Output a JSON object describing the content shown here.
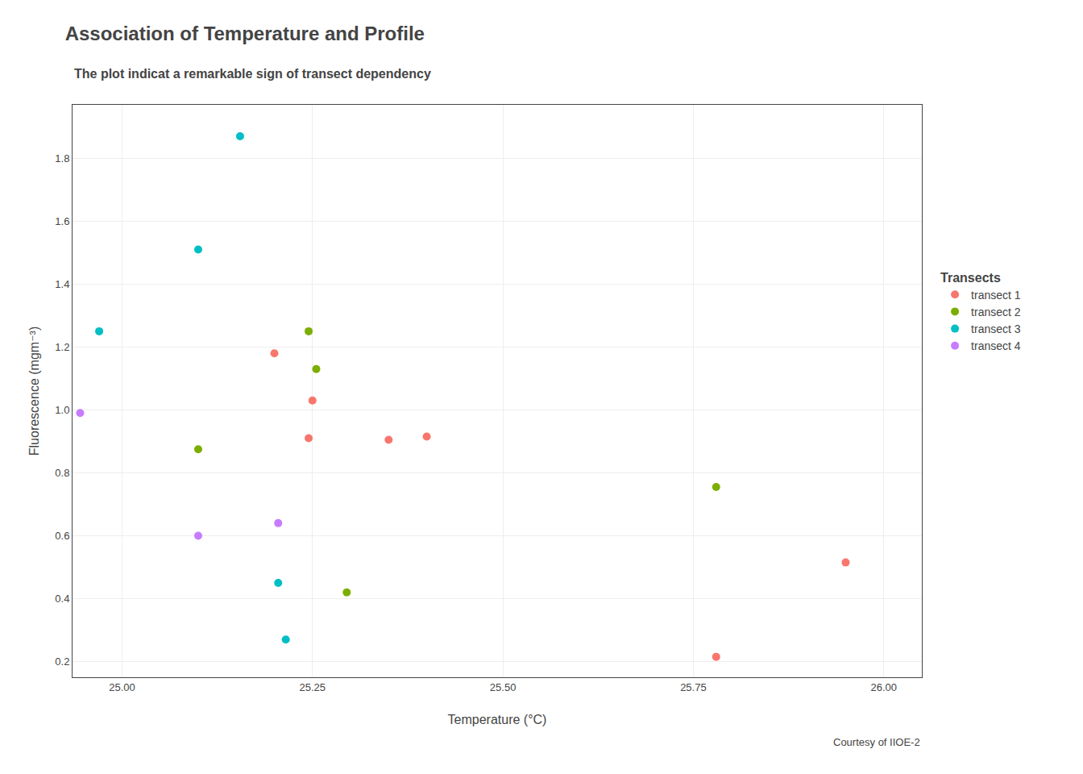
{
  "chart_data": {
    "type": "scatter",
    "title": "Association of Temperature and Profile",
    "subtitle": "The plot indicat a remarkable sign of transect dependency",
    "xlabel": "Temperature (°C)",
    "ylabel": "Fluorescence (mgm⁻³)",
    "annotations": [
      "Courtesy of IIOE-2"
    ],
    "xlim": [
      24.935,
      26.05
    ],
    "ylim": [
      0.15,
      1.97
    ],
    "xticks": [
      {
        "value": 25.0,
        "label": "25.00"
      },
      {
        "value": 25.25,
        "label": "25.25"
      },
      {
        "value": 25.5,
        "label": "25.50"
      },
      {
        "value": 25.75,
        "label": "25.75"
      },
      {
        "value": 26.0,
        "label": "26.00"
      }
    ],
    "yticks": [
      0.2,
      0.4,
      0.6,
      0.8,
      {
        "value": 1.0,
        "label": "1.0"
      },
      1.2,
      1.4,
      1.6,
      1.8
    ],
    "grid": true,
    "legend": "right",
    "legend_title": "Transects",
    "marker": "circle",
    "series": [
      {
        "name": "transect 1",
        "color": "#F8766D",
        "x": [
          25.2,
          25.25,
          25.245,
          25.35,
          25.4,
          25.78,
          25.95
        ],
        "values": [
          1.18,
          1.03,
          0.91,
          0.905,
          0.915,
          0.215,
          0.515
        ]
      },
      {
        "name": "transect 2",
        "color": "#7CAE00",
        "x": [
          25.1,
          25.245,
          25.255,
          25.295,
          25.78
        ],
        "values": [
          0.875,
          1.25,
          1.13,
          0.42,
          0.755
        ]
      },
      {
        "name": "transect 3",
        "color": "#00BFC4",
        "x": [
          24.97,
          25.1,
          25.155,
          25.205,
          25.215
        ],
        "values": [
          1.25,
          1.51,
          1.87,
          0.45,
          0.27
        ]
      },
      {
        "name": "transect 4",
        "color": "#C77CFF",
        "x": [
          24.945,
          25.1,
          25.205
        ],
        "values": [
          0.99,
          0.6,
          0.64
        ]
      }
    ]
  }
}
